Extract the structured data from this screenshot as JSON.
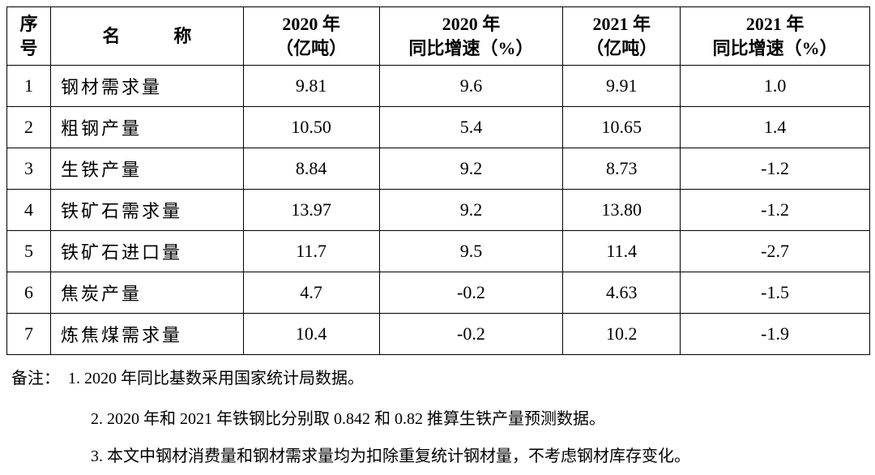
{
  "table": {
    "header": [
      [
        "序",
        "号"
      ],
      [
        "名　　　称"
      ],
      [
        "2020 年",
        "（亿吨）"
      ],
      [
        "2020 年",
        "同比增速（%）"
      ],
      [
        "2021 年",
        "（亿吨）"
      ],
      [
        "2021 年",
        "同比增速（%）"
      ]
    ],
    "rows": [
      [
        "1",
        "钢材需求量",
        "9.81",
        "9.6",
        "9.91",
        "1.0"
      ],
      [
        "2",
        "粗钢产量",
        "10.50",
        "5.4",
        "10.65",
        "1.4"
      ],
      [
        "3",
        "生铁产量",
        "8.84",
        "9.2",
        "8.73",
        "-1.2"
      ],
      [
        "4",
        "铁矿石需求量",
        "13.97",
        "9.2",
        "13.80",
        "-1.2"
      ],
      [
        "5",
        "铁矿石进口量",
        "11.7",
        "9.5",
        "11.4",
        "-2.7"
      ],
      [
        "6",
        "焦炭产量",
        "4.7",
        "-0.2",
        "4.63",
        "-1.5"
      ],
      [
        "7",
        "炼焦煤需求量",
        "10.4",
        "-0.2",
        "10.2",
        "-1.9"
      ]
    ]
  },
  "notes": {
    "label": "备注：",
    "items": [
      "1. 2020 年同比基数采用国家统计局数据。",
      "2. 2020 年和 2021 年铁钢比分别取 0.842 和 0.82 推算生铁产量预测数据。",
      "3. 本文中钢材消费量和钢材需求量均为扣除重复统计钢材量，不考虑钢材库存变化。"
    ]
  }
}
